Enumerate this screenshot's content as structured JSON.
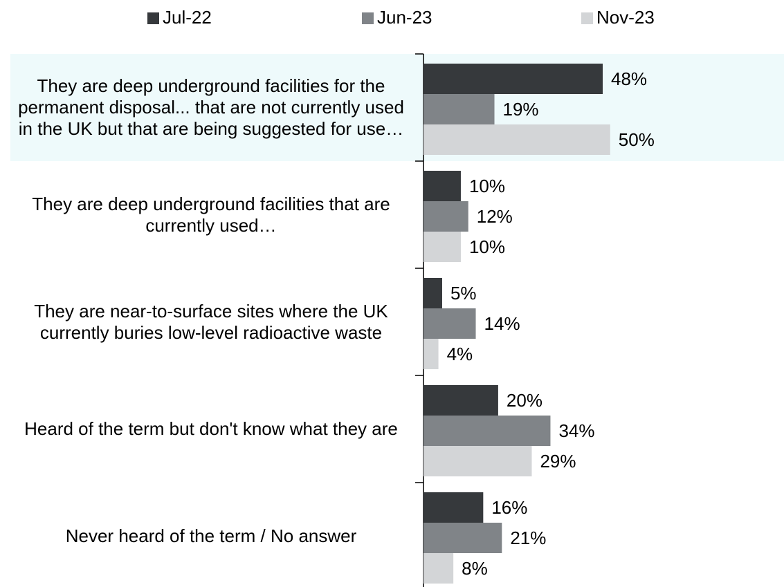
{
  "chart_data": {
    "type": "bar",
    "orientation": "horizontal",
    "categories": [
      "They are deep underground facilities for the permanent disposal... that are not currently used in the UK but that are being suggested for use…",
      "They are deep underground facilities that are currently used…",
      "They are near-to-surface sites where the UK currently buries low-level radioactive waste",
      "Heard of the term but don't know what they are",
      "Never heard of the term / No answer"
    ],
    "series": [
      {
        "name": "Jul-22",
        "color": "#36393c",
        "values": [
          48,
          10,
          5,
          20,
          16
        ],
        "value_labels": [
          "48%",
          "10%",
          "5%",
          "20%",
          "16%"
        ]
      },
      {
        "name": "Jun-23",
        "color": "#808488",
        "values": [
          19,
          12,
          14,
          34,
          21
        ],
        "value_labels": [
          "19%",
          "12%",
          "14%",
          "34%",
          "21%"
        ]
      },
      {
        "name": "Nov-23",
        "color": "#d3d5d7",
        "values": [
          50,
          10,
          4,
          29,
          8
        ],
        "value_labels": [
          "50%",
          "10%",
          "4%",
          "29%",
          "8%"
        ]
      }
    ],
    "xlim": [
      0,
      96
    ],
    "legend": "top"
  }
}
